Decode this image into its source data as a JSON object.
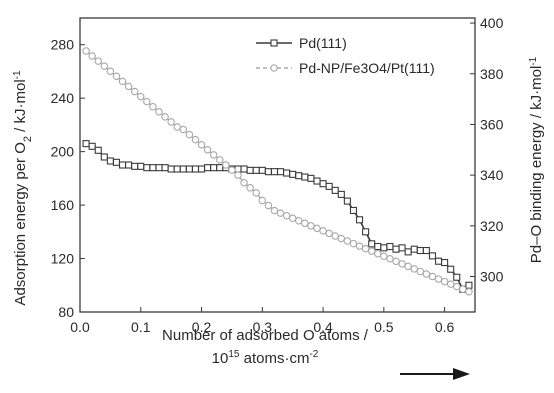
{
  "chart_data": {
    "type": "line",
    "title": "",
    "x": [
      0.01,
      0.02,
      0.03,
      0.04,
      0.05,
      0.06,
      0.07,
      0.08,
      0.09,
      0.1,
      0.11,
      0.12,
      0.13,
      0.14,
      0.15,
      0.16,
      0.17,
      0.18,
      0.19,
      0.2,
      0.21,
      0.22,
      0.23,
      0.24,
      0.25,
      0.26,
      0.27,
      0.28,
      0.29,
      0.3,
      0.31,
      0.32,
      0.33,
      0.34,
      0.35,
      0.36,
      0.37,
      0.38,
      0.39,
      0.4,
      0.41,
      0.42,
      0.43,
      0.44,
      0.45,
      0.46,
      0.47,
      0.48,
      0.49,
      0.5,
      0.51,
      0.52,
      0.53,
      0.54,
      0.55,
      0.56,
      0.57,
      0.58,
      0.59,
      0.6,
      0.61,
      0.62,
      0.63,
      0.64
    ],
    "series": [
      {
        "name": "Pd(111)",
        "axis": "left",
        "marker": "square",
        "values": [
          206,
          204,
          201,
          196,
          193,
          192,
          190,
          190,
          189,
          189,
          188,
          188,
          188,
          188,
          187,
          187,
          187,
          187,
          187,
          187,
          188,
          188,
          188,
          188,
          187,
          187,
          187,
          186,
          186,
          186,
          185,
          185,
          185,
          184,
          183,
          182,
          181,
          180,
          178,
          176,
          174,
          171,
          168,
          163,
          156,
          149,
          140,
          131,
          129,
          128,
          129,
          127,
          128,
          125,
          127,
          126,
          126,
          122,
          118,
          117,
          112,
          106,
          97,
          100
        ]
      },
      {
        "name": "Pd-NP/Fe3O4/Pt(111)",
        "axis": "right",
        "marker": "circle",
        "values": [
          389,
          387,
          385,
          383,
          381,
          379,
          377,
          375,
          373,
          371,
          369,
          367,
          365,
          363,
          361,
          359,
          358,
          356,
          354,
          352,
          350,
          348,
          346,
          344,
          342,
          340,
          337,
          335,
          333,
          330,
          328,
          326,
          325,
          324,
          323,
          322,
          321,
          320,
          319,
          318,
          317,
          316,
          315,
          314,
          313,
          312,
          311,
          310,
          309,
          308,
          307,
          306,
          305,
          304,
          303,
          302,
          301,
          300,
          299,
          298,
          297,
          296,
          295,
          294
        ]
      }
    ],
    "xlabel_line1": "Number of adsorbed O atoms /",
    "xlabel_line2_base": "10",
    "xlabel_line2_sup": "15",
    "xlabel_line2_unit": " atoms",
    "xlabel_line2_dot": "·",
    "xlabel_line2_cm": "cm",
    "xlabel_line2_cm_sup": "-2",
    "ylabel": "Adsorption energy per O",
    "ylabel_sub": "2",
    "ylabel_unit": " / kJ·mol",
    "ylabel_sup": "-1",
    "y2label": "Pd–O binding energy / kJ·mol",
    "y2label_sup": "-1",
    "xlim": [
      0.0,
      0.65
    ],
    "ylim": [
      80,
      300
    ],
    "y2lim": [
      286,
      402
    ],
    "xticks": [
      0.0,
      0.1,
      0.2,
      0.3,
      0.4,
      0.5,
      0.6
    ],
    "xtick_labels": [
      "0.0",
      "0.1",
      "0.2",
      "0.3",
      "0.4",
      "0.5",
      "0.6"
    ],
    "yticks": [
      80,
      120,
      160,
      200,
      240,
      280
    ],
    "ytick_labels": [
      "80",
      "120",
      "160",
      "200",
      "240",
      "280"
    ],
    "y2ticks": [
      300,
      320,
      340,
      360,
      380,
      400
    ],
    "y2tick_labels": [
      "300",
      "320",
      "340",
      "360",
      "380",
      "400"
    ],
    "legend_position": "top-right",
    "grid": false,
    "colors": {
      "series1": "#3a3a3a",
      "series2": "#a8a8a8",
      "axis": "#3a3a3a",
      "arrow": "#1a1a1a"
    }
  }
}
